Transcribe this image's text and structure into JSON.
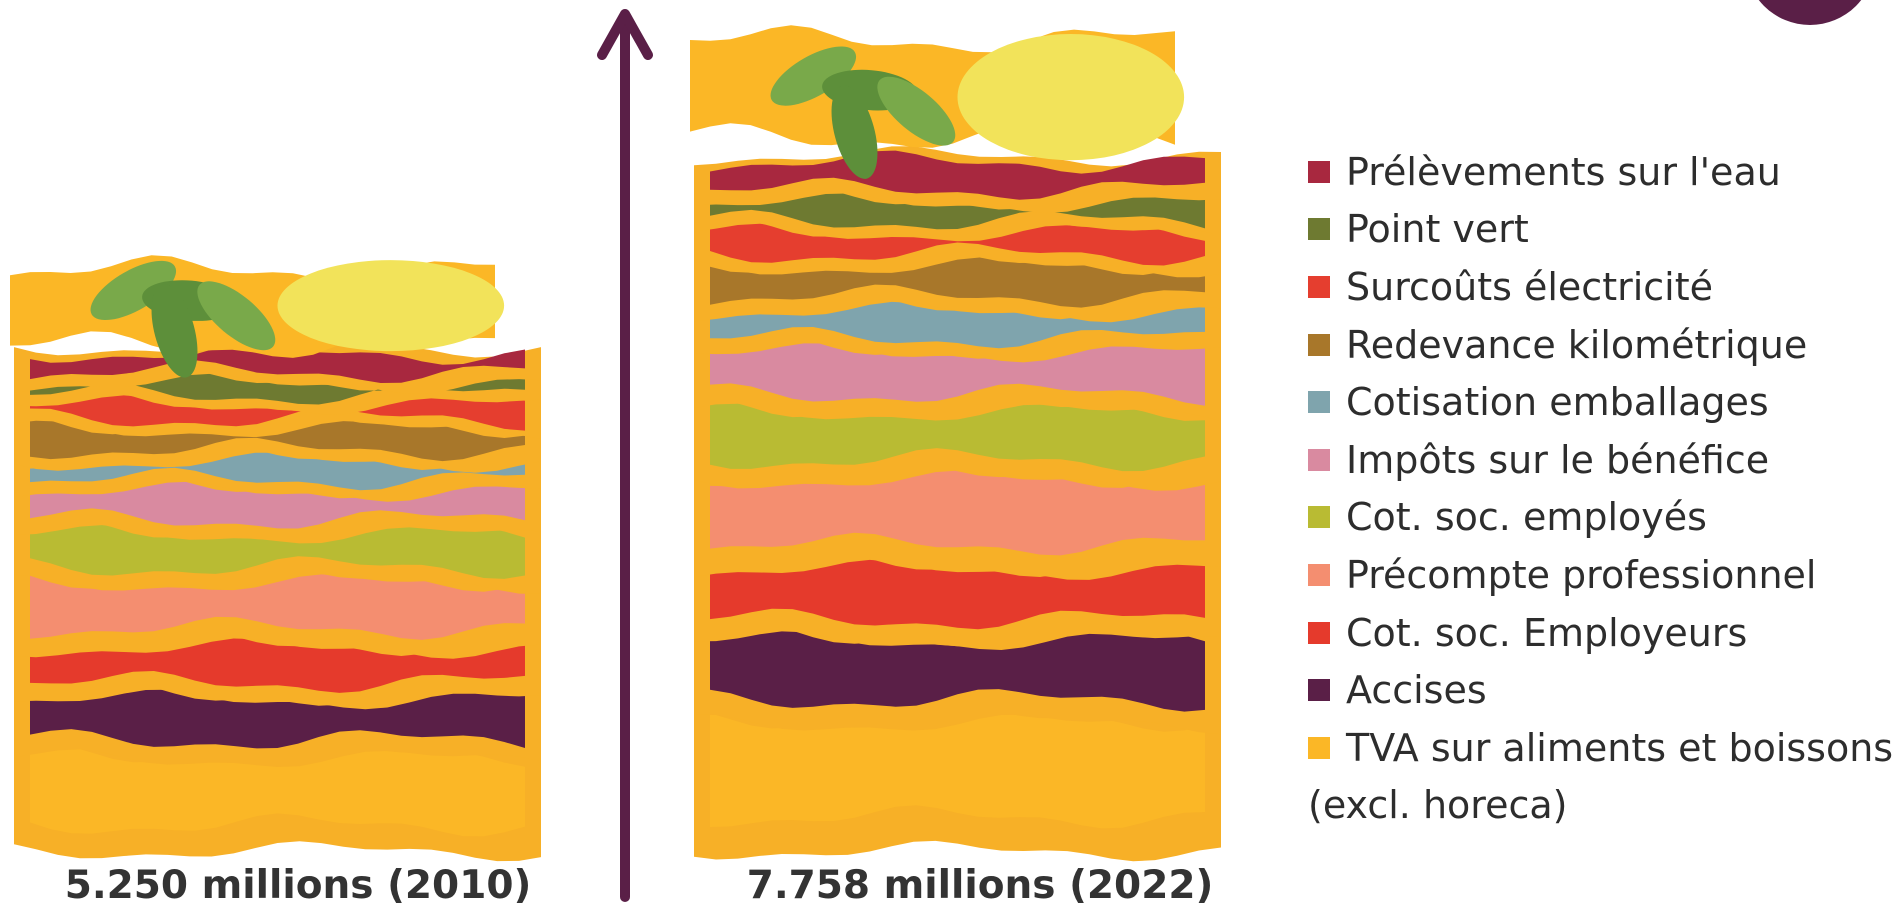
{
  "stacks": [
    {
      "label": "5.250 millions (2010)"
    },
    {
      "label": "7.758 millions (2022)"
    }
  ],
  "legend": {
    "items": [
      {
        "label": "Prélèvements sur l'eau",
        "color": "#a8283f"
      },
      {
        "label": "Point vert",
        "color": "#6e7a31"
      },
      {
        "label": "Surcoûts électricité",
        "color": "#e53e2f"
      },
      {
        "label": "Redevance kilométrique",
        "color": "#a8772a"
      },
      {
        "label": "Cotisation emballages",
        "color": "#7fa4ad"
      },
      {
        "label": "Impôts sur le bénéfice",
        "color": "#d98aa0"
      },
      {
        "label": "Cot. soc. employés",
        "color": "#b9bb33"
      },
      {
        "label": "Précompte professionnel",
        "color": "#f48e70"
      },
      {
        "label": "Cot. soc. Employeurs",
        "color": "#e53a2c"
      },
      {
        "label": "Accises",
        "color": "#5a1f47"
      },
      {
        "label": "TVA sur aliments et boissons",
        "label_line2": "(excl. horeca)",
        "color": "#fbb726"
      }
    ]
  }
}
